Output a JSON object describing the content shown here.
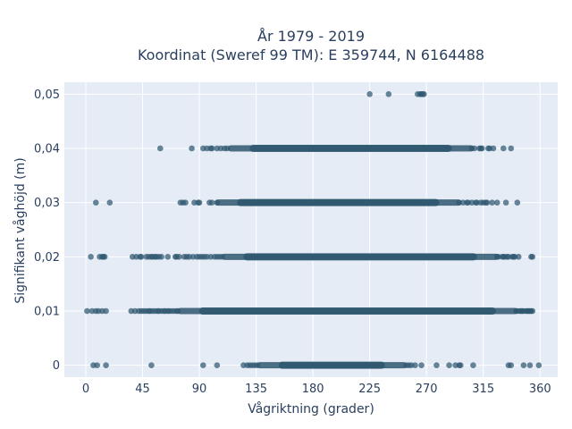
{
  "chart_data": {
    "type": "scatter",
    "title_lines": [
      "År 1979 - 2019",
      "Koordinat (Sweref 99 TM): E 359744, N 6164488"
    ],
    "xlabel": "Vågriktning (grader)",
    "ylabel": "Signifikant våghöjd (m)",
    "xlim": [
      -17,
      374
    ],
    "ylim": [
      -0.0022,
      0.0522
    ],
    "x_ticks": [
      0,
      45,
      90,
      135,
      180,
      225,
      270,
      315,
      360
    ],
    "x_tick_labels": [
      "0",
      "45",
      "90",
      "135",
      "180",
      "225",
      "270",
      "315",
      "360"
    ],
    "y_ticks": [
      0,
      0.01,
      0.02,
      0.03,
      0.04,
      0.05
    ],
    "y_tick_labels": [
      "0",
      "0,01",
      "0,02",
      "0,03",
      "0,04",
      "0,05"
    ],
    "grid": true,
    "marker_color": "#2f5870",
    "background_color": "#e5ecf6",
    "rows": [
      {
        "y": 0.05,
        "dense_range": null,
        "points": [
          225,
          240,
          263,
          265,
          266,
          267,
          268
        ]
      },
      {
        "y": 0.04,
        "dense_range": [
          115,
          305
        ],
        "points": [
          59,
          84,
          93,
          96,
          99,
          100,
          104,
          107,
          110,
          112,
          306,
          308,
          312,
          313,
          314,
          319,
          320,
          323,
          331,
          337
        ]
      },
      {
        "y": 0.03,
        "dense_range": [
          105,
          295
        ],
        "points": [
          8,
          19,
          75,
          77,
          79,
          86,
          89,
          90,
          98,
          100,
          104,
          296,
          299,
          302,
          303,
          306,
          309,
          310,
          313,
          315,
          317,
          318,
          322,
          326,
          333,
          342
        ]
      },
      {
        "y": 0.02,
        "dense_range": [
          110,
          325
        ],
        "points": [
          4,
          11,
          13,
          14,
          15,
          37,
          40,
          43,
          44,
          48,
          50,
          52,
          53,
          55,
          56,
          58,
          60,
          65,
          71,
          72,
          74,
          78,
          80,
          82,
          85,
          88,
          90,
          92,
          94,
          96,
          99,
          102,
          104,
          106,
          108,
          326,
          327,
          330,
          331,
          332,
          334,
          335,
          338,
          339,
          340,
          343,
          353,
          354
        ]
      },
      {
        "y": 0.01,
        "dense_range": [
          75,
          340
        ],
        "points": [
          1,
          5,
          8,
          10,
          13,
          16,
          36,
          39,
          42,
          44,
          46,
          48,
          50,
          51,
          53,
          55,
          57,
          58,
          60,
          62,
          63,
          65,
          66,
          68,
          70,
          72,
          73,
          341,
          342,
          344,
          345,
          346,
          347,
          349,
          350,
          351,
          352,
          353,
          354
        ]
      },
      {
        "y": 0,
        "dense_range": [
          138,
          252
        ],
        "points": [
          6,
          9,
          16,
          52,
          93,
          104,
          125,
          128,
          130,
          132,
          134,
          136,
          254,
          256,
          258,
          261,
          266,
          278,
          288,
          293,
          296,
          297,
          307,
          335,
          337,
          347,
          352,
          359
        ]
      }
    ]
  }
}
